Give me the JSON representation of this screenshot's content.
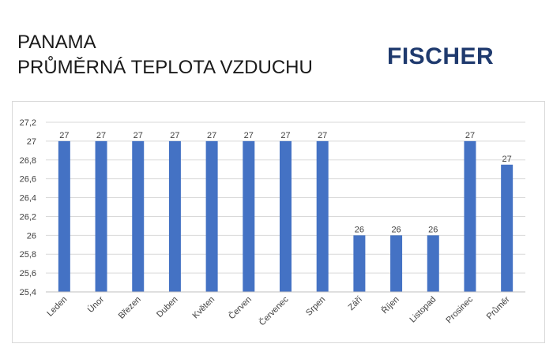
{
  "header": {
    "title_line1": "PANAMA",
    "title_line2": "PRŮMĚRNÁ TEPLOTA VZDUCHU",
    "logo_text": "FISCHER",
    "logo_color": "#1f3a6e"
  },
  "chart_data": {
    "type": "bar",
    "categories": [
      "Leden",
      "Únor",
      "Březen",
      "Duben",
      "Květen",
      "Červen",
      "Červenec",
      "Srpen",
      "Září",
      "Říjen",
      "Listopad",
      "Prosinec",
      "Průměr"
    ],
    "values": [
      27,
      27,
      27,
      27,
      27,
      27,
      27,
      27,
      26,
      26,
      26,
      27,
      26.75
    ],
    "data_labels": [
      "27",
      "27",
      "27",
      "27",
      "27",
      "27",
      "27",
      "27",
      "26",
      "26",
      "26",
      "27",
      "27"
    ],
    "y_ticks": [
      "25,4",
      "25,6",
      "25,8",
      "26",
      "26,2",
      "26,4",
      "26,6",
      "26,8",
      "27",
      "27,2"
    ],
    "ylim": [
      25.4,
      27.2
    ],
    "grid": true,
    "legend": "none",
    "bar_color": "#4472c4",
    "title": "",
    "xlabel": "",
    "ylabel": ""
  }
}
